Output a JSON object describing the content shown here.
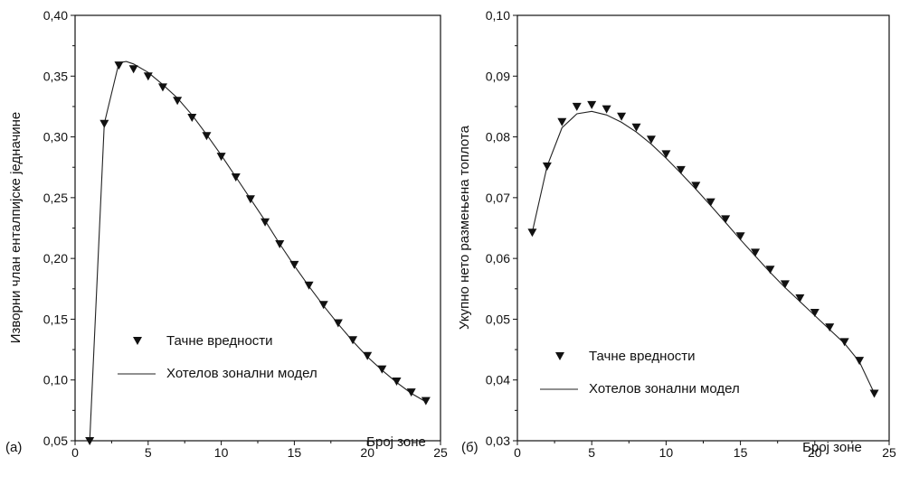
{
  "chart_data": [
    {
      "type": "line",
      "panel_label": "(a)",
      "xlabel": "Број зоне",
      "ylabel": "Изворни члан енталпијске једначине",
      "xlim": [
        0,
        25
      ],
      "ylim": [
        0.05,
        0.4
      ],
      "xticks": [
        "0",
        "5",
        "10",
        "15",
        "20",
        "25"
      ],
      "yticks": [
        "0,05",
        "0,10",
        "0,15",
        "0,20",
        "0,25",
        "0,30",
        "0,35",
        "0,40"
      ],
      "legend_position": "center-left",
      "series": [
        {
          "name": "Тачне вредности",
          "marker": "triangle-down",
          "x": [
            1,
            2,
            3,
            4,
            5,
            6,
            7,
            8,
            9,
            10,
            11,
            12,
            13,
            14,
            15,
            16,
            17,
            18,
            19,
            20,
            21,
            22,
            23,
            24
          ],
          "y": [
            0.05,
            0.311,
            0.359,
            0.356,
            0.35,
            0.341,
            0.33,
            0.316,
            0.301,
            0.284,
            0.267,
            0.249,
            0.23,
            0.212,
            0.195,
            0.178,
            0.162,
            0.147,
            0.133,
            0.12,
            0.109,
            0.099,
            0.09,
            0.083
          ]
        },
        {
          "name": "Хотелов зонални модел",
          "marker": "none",
          "x": [
            1,
            2,
            3,
            3.5,
            4,
            5,
            6,
            7,
            8,
            9,
            10,
            11,
            12,
            13,
            14,
            15,
            16,
            17,
            18,
            19,
            20,
            21,
            22,
            23,
            24
          ],
          "y": [
            0.05,
            0.311,
            0.361,
            0.362,
            0.36,
            0.353,
            0.343,
            0.332,
            0.318,
            0.302,
            0.285,
            0.267,
            0.249,
            0.231,
            0.212,
            0.194,
            0.177,
            0.161,
            0.146,
            0.132,
            0.119,
            0.108,
            0.098,
            0.089,
            0.082
          ]
        }
      ]
    },
    {
      "type": "line",
      "panel_label": "(б)",
      "xlabel": "Број зоне",
      "ylabel": "Укупно нето размењена топлота",
      "xlim": [
        0,
        25
      ],
      "ylim": [
        0.03,
        0.1
      ],
      "xticks": [
        "0",
        "5",
        "10",
        "15",
        "20",
        "25"
      ],
      "yticks": [
        "0,03",
        "0,04",
        "0,05",
        "0,06",
        "0,07",
        "0,08",
        "0,09",
        "0,10"
      ],
      "legend_position": "lower-left",
      "series": [
        {
          "name": "Тачне вредности",
          "marker": "triangle-down",
          "x": [
            1,
            2,
            3,
            4,
            5,
            6,
            7,
            8,
            9,
            10,
            11,
            12,
            13,
            14,
            15,
            16,
            17,
            18,
            19,
            20,
            21,
            22,
            23,
            24
          ],
          "y": [
            0.0643,
            0.0752,
            0.0825,
            0.085,
            0.0853,
            0.0846,
            0.0834,
            0.0816,
            0.0796,
            0.0772,
            0.0746,
            0.072,
            0.0693,
            0.0665,
            0.0637,
            0.061,
            0.0582,
            0.0558,
            0.0535,
            0.0511,
            0.0487,
            0.0463,
            0.0432,
            0.0378
          ]
        },
        {
          "name": "Хотелов зонални модел",
          "marker": "none",
          "x": [
            1,
            2,
            3,
            4,
            5,
            6,
            7,
            8,
            9,
            10,
            11,
            12,
            13,
            14,
            15,
            16,
            17,
            18,
            19,
            20,
            21,
            22,
            23,
            24
          ],
          "y": [
            0.0643,
            0.0752,
            0.0815,
            0.0838,
            0.0842,
            0.0836,
            0.0824,
            0.0808,
            0.0788,
            0.0765,
            0.074,
            0.0714,
            0.0687,
            0.0659,
            0.0631,
            0.0604,
            0.0577,
            0.0552,
            0.0529,
            0.0506,
            0.0483,
            0.046,
            0.043,
            0.0378
          ]
        }
      ]
    }
  ]
}
